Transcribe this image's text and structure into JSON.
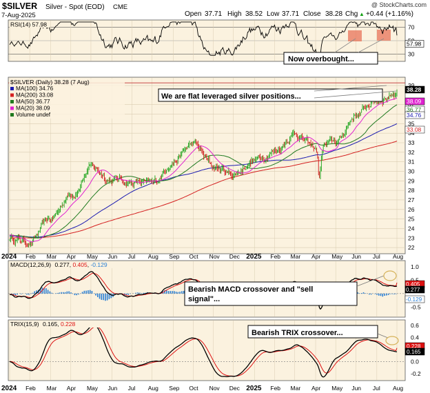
{
  "header": {
    "symbol": "$SILVER",
    "description": "Silver - Spot (EOD)",
    "exchange": "CME",
    "date": "7-Aug-2025",
    "open_label": "Open",
    "open": "37.71",
    "high_label": "High",
    "high": "38.52",
    "low_label": "Low",
    "low": "37.71",
    "close_label": "Close",
    "close": "38.28",
    "chg_label": "Chg",
    "chg": "+0.44 (+1.16%)",
    "chg_arrow": "▲",
    "watermark": "@ StockCharts.com"
  },
  "colors": {
    "panel_bg": "#fbf2df",
    "price_up": "#12a012",
    "price_down": "#cc1111",
    "ma100": "#1a1ab0",
    "ma200": "#d42020",
    "ma50": "#1f7a1f",
    "ma20": "#e020d0",
    "rsi": "#000000",
    "macd": "#000000",
    "macd_signal": "#dd1111",
    "macd_hist": "#2a7fd4",
    "trix": "#000000",
    "trix_signal": "#dd1111",
    "annotation_box": "#000000",
    "highlight": "#e8735a"
  },
  "chart_data": {
    "type": "line",
    "x_axis_labels": [
      "2024",
      "Feb",
      "Mar",
      "Apr",
      "May",
      "Jun",
      "Jul",
      "Aug",
      "Sep",
      "Oct",
      "Nov",
      "Dec",
      "2025",
      "Feb",
      "Mar",
      "Apr",
      "May",
      "Jun",
      "Jul",
      "Aug"
    ],
    "price_panel": {
      "legend_title": "$SILVER (Daily) 38.28 (7 Aug)",
      "legend": [
        {
          "label": "MA(100) 34.76",
          "color": "#1a1ab0"
        },
        {
          "label": "MA(200) 33.08",
          "color": "#d42020"
        },
        {
          "label": "MA(50) 36.77",
          "color": "#1f7a1f"
        },
        {
          "label": "MA(20) 38.09",
          "color": "#e020d0"
        },
        {
          "label": "Volume undef",
          "color": "#1f7a1f"
        }
      ],
      "y_ticks": [
        22,
        23,
        24,
        25,
        26,
        27,
        28,
        29,
        30,
        31,
        32,
        33,
        34,
        35,
        36,
        37,
        39
      ],
      "ylim": [
        21.5,
        39.8
      ],
      "right_tags": [
        {
          "label": "38.28",
          "value": 38.28,
          "bg": "#000000",
          "fg": "#ffffff"
        },
        {
          "label": "38.09",
          "value": 38.09,
          "bg": "#e020d0",
          "fg": "#ffffff"
        },
        {
          "label": "36.77",
          "value": 36.77,
          "bg": "#ffffff",
          "fg": "#1f7a1f"
        },
        {
          "label": "34.76",
          "value": 34.76,
          "bg": "#ffffff",
          "fg": "#1a1ab0"
        },
        {
          "label": "33.08",
          "value": 33.08,
          "bg": "#ffffff",
          "fg": "#d42020"
        }
      ],
      "close_by_month": [
        {
          "x": "2024-01",
          "close": 23.0
        },
        {
          "x": "2024-02",
          "close": 22.6
        },
        {
          "x": "2024-03",
          "close": 24.9
        },
        {
          "x": "2024-04",
          "close": 27.6
        },
        {
          "x": "2024-05",
          "close": 30.4
        },
        {
          "x": "2024-06",
          "close": 29.2
        },
        {
          "x": "2024-07",
          "close": 28.9
        },
        {
          "x": "2024-08",
          "close": 28.6
        },
        {
          "x": "2024-09",
          "close": 31.1
        },
        {
          "x": "2024-10",
          "close": 32.8
        },
        {
          "x": "2024-11",
          "close": 30.5
        },
        {
          "x": "2024-12",
          "close": 29.7
        },
        {
          "x": "2025-01",
          "close": 31.2
        },
        {
          "x": "2025-02",
          "close": 32.2
        },
        {
          "x": "2025-03",
          "close": 34.0
        },
        {
          "x": "2025-04",
          "close": 32.4
        },
        {
          "x": "2025-05",
          "close": 33.0
        },
        {
          "x": "2025-06",
          "close": 36.0
        },
        {
          "x": "2025-07",
          "close": 37.5
        },
        {
          "x": "2025-08",
          "close": 38.28
        }
      ],
      "annotation": "We are flat leveraged silver positions..."
    },
    "rsi_panel": {
      "legend": "RSI(14) 57.98",
      "y_ticks": [
        30,
        50,
        70
      ],
      "ylim": [
        20,
        80
      ],
      "last_value": 57.98,
      "annotation": "Now overbought..."
    },
    "macd_panel": {
      "legend_name": "MACD(12,26,9)",
      "macd": 0.277,
      "signal": 0.405,
      "hist": -0.129,
      "macd_label": "0.277",
      "signal_label": "0.405",
      "hist_label": "-0.129",
      "y_ticks": [
        "1.0",
        "0.5",
        "-0.5"
      ],
      "ylim": [
        -0.85,
        1.2
      ],
      "annotation": "Bearish MACD crossover and \"sell signal\"..."
    },
    "trix_panel": {
      "legend_name": "TRIX(15,9)",
      "trix": 0.165,
      "signal": 0.228,
      "trix_label": "0.165",
      "signal_label": "0.228",
      "y_ticks": [
        "0.6",
        "0.4",
        "0.2",
        "0.0",
        "-0.2"
      ],
      "ylim": [
        -0.3,
        0.68
      ],
      "annotation": "Bearish TRIX crossover..."
    }
  }
}
